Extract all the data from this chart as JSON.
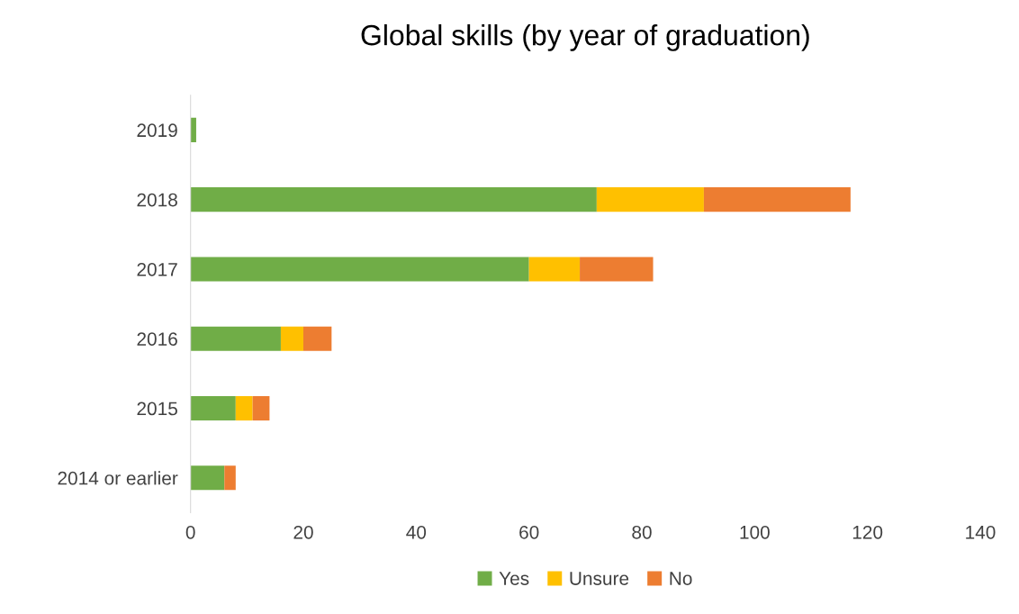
{
  "chart_data": {
    "type": "bar",
    "title": "Global skills (by year of graduation)",
    "orientation": "horizontal",
    "stacked": true,
    "categories": [
      "2019",
      "2018",
      "2017",
      "2016",
      "2015",
      "2014 or earlier"
    ],
    "series": [
      {
        "name": "Yes",
        "color": "#70ad47",
        "values": [
          1,
          72,
          60,
          16,
          8,
          6
        ]
      },
      {
        "name": "Unsure",
        "color": "#ffc000",
        "values": [
          0,
          19,
          9,
          4,
          3,
          0
        ]
      },
      {
        "name": "No",
        "color": "#ed7d31",
        "values": [
          0,
          26,
          13,
          5,
          3,
          2
        ]
      }
    ],
    "xlim": [
      0,
      140
    ],
    "xticks": [
      0,
      20,
      40,
      60,
      80,
      100,
      120,
      140
    ],
    "grid": false,
    "legend": "bottom"
  }
}
